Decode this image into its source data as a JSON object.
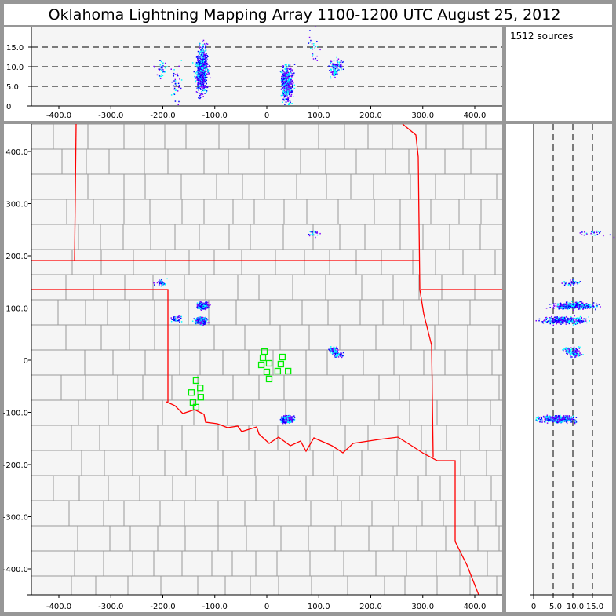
{
  "title": "Oklahoma Lightning Mapping Array   1100-1200 UTC  August 25, 2012",
  "sources_label": "1512 sources",
  "colors": {
    "background": "#979797",
    "plot_bg": "#f5f5f5",
    "state_border": "#ff0000",
    "county_border": "#999999",
    "station": "#00ee00",
    "source_early": "#7f00ff",
    "source_mid": "#0000ff",
    "source_late": "#00ffff"
  },
  "chart_data": {
    "type": "scatter",
    "axes": {
      "x_km": {
        "range": [
          -453,
          453
        ],
        "ticks": [
          -400,
          -300,
          -200,
          -100,
          0,
          100,
          200,
          300,
          400
        ],
        "tick_labels": [
          "-400.0",
          "-300.0",
          "-200.0",
          "-100.0",
          "0",
          "100.0",
          "200.0",
          "300.0",
          "400.0"
        ]
      },
      "y_km": {
        "range": [
          -450,
          453
        ],
        "ticks": [
          400,
          300,
          200,
          100,
          0,
          -100,
          -200,
          -300,
          -400
        ],
        "tick_labels": [
          "400.0",
          "300.0",
          "200.0",
          "100.0",
          "0",
          "-100.0",
          "-200.0",
          "-300.0",
          "-400.0"
        ]
      },
      "alt_km": {
        "range": [
          0,
          20
        ],
        "ticks": [
          0,
          5,
          10,
          15
        ],
        "tick_labels": [
          "0",
          "5.0",
          "10.0",
          "15.0"
        ],
        "dashed_grid": [
          5,
          10,
          15
        ]
      }
    },
    "stations_km": [
      [
        -4.5,
        16.5
      ],
      [
        -7.5,
        4.5
      ],
      [
        30,
        6
      ],
      [
        -10.5,
        -9
      ],
      [
        4.5,
        -6
      ],
      [
        27,
        -7.5
      ],
      [
        0,
        -22.5
      ],
      [
        21,
        -21
      ],
      [
        41,
        -21
      ],
      [
        4.5,
        -36
      ],
      [
        -136,
        -39
      ],
      [
        -128,
        -53
      ],
      [
        -145,
        -62
      ],
      [
        -127,
        -71
      ],
      [
        -142,
        -81
      ],
      [
        -136,
        -90
      ]
    ],
    "source_clusters": [
      {
        "x": -124,
        "y": 105,
        "alt": 10,
        "alt_spread": 2.5,
        "count": 420
      },
      {
        "x": -128,
        "y": 77,
        "alt": 8,
        "alt_spread": 2.5,
        "count": 330
      },
      {
        "x": -205,
        "y": 150,
        "alt": 9.5,
        "alt_spread": 1,
        "count": 40
      },
      {
        "x": 38,
        "y": -112,
        "alt": 6,
        "alt_spread": 2,
        "count": 520
      },
      {
        "x": 137,
        "y": 12,
        "alt": 10.3,
        "alt_spread": 0.8,
        "count": 60
      },
      {
        "x": 88,
        "y": 243,
        "alt": 15.5,
        "alt_spread": 1.8,
        "count": 25
      },
      {
        "x": -175,
        "y": 80,
        "alt": 6,
        "alt_spread": 2,
        "count": 40
      },
      {
        "x": 128,
        "y": 20,
        "alt": 9.5,
        "alt_spread": 1,
        "count": 77
      }
    ]
  }
}
